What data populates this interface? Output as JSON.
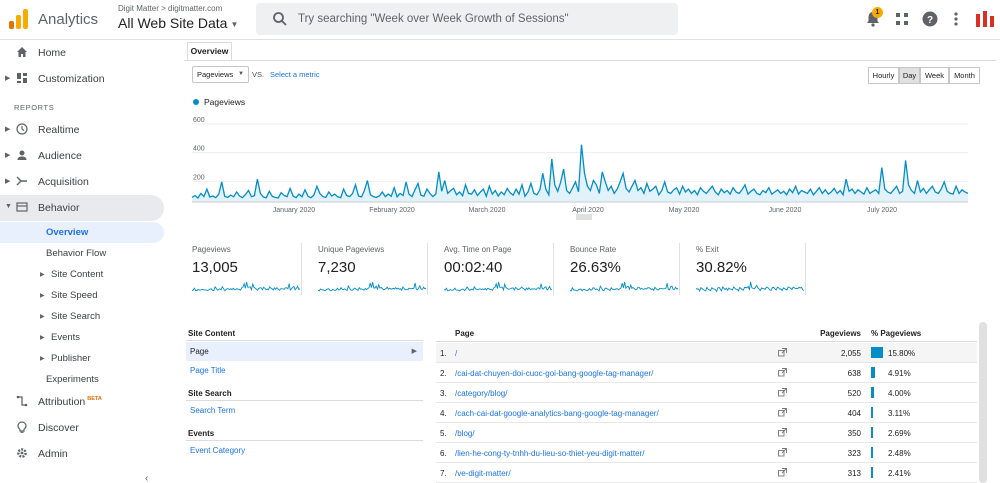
{
  "header": {
    "app_name": "Analytics",
    "breadcrumb": "Digit Matter > digitmatter.com",
    "property": "All Web Site Data",
    "search_placeholder": "Try searching \"Week over Week Growth of Sessions\"",
    "notification_count": "1"
  },
  "sidebar": {
    "home": "Home",
    "customization": "Customization",
    "reports_heading": "REPORTS",
    "realtime": "Realtime",
    "audience": "Audience",
    "acquisition": "Acquisition",
    "behavior": "Behavior",
    "overview": "Overview",
    "behavior_flow": "Behavior Flow",
    "site_content": "Site Content",
    "site_speed": "Site Speed",
    "site_search": "Site Search",
    "events": "Events",
    "publisher": "Publisher",
    "experiments": "Experiments",
    "attribution": "Attribution",
    "attribution_badge": "BETA",
    "discover": "Discover",
    "admin": "Admin"
  },
  "main": {
    "tab": "Overview",
    "metric_select": "Pageviews",
    "vs": "VS.",
    "select_metric": "Select a metric",
    "granularity": [
      "Hourly",
      "Day",
      "Week",
      "Month"
    ],
    "selected_granularity": "Day",
    "legend": "Pageviews"
  },
  "chart_data": {
    "type": "area",
    "series": [
      {
        "name": "Pageviews",
        "color": "#058dc7"
      }
    ],
    "y_ticks": [
      "600",
      "400",
      "200"
    ],
    "x_ticks": [
      "January 2020",
      "February 2020",
      "March 2020",
      "April 2020",
      "May 2020",
      "June 2020",
      "July 2020"
    ],
    "ylim": [
      0,
      600
    ],
    "values": [
      32,
      45,
      28,
      60,
      38,
      90,
      35,
      42,
      30,
      55,
      140,
      40,
      32,
      48,
      36,
      70,
      42,
      30,
      52,
      80,
      38,
      44,
      160,
      60,
      35,
      30,
      75,
      40,
      32,
      28,
      65,
      45,
      38,
      95,
      42,
      30,
      55,
      36,
      85,
      40,
      30,
      48,
      110,
      60,
      38,
      32,
      70,
      42,
      55,
      36,
      30,
      90,
      45,
      38,
      60,
      120,
      42,
      35,
      80,
      150,
      50,
      38,
      32,
      42,
      70,
      38,
      55,
      40,
      100,
      36,
      60,
      45,
      140,
      55,
      38,
      85,
      130,
      48,
      40,
      90,
      60,
      38,
      55,
      210,
      75,
      150,
      60,
      80,
      95,
      50,
      70,
      44,
      120,
      60,
      55,
      85,
      45,
      70,
      90,
      40,
      110,
      55,
      80,
      42,
      70,
      50,
      95,
      65,
      48,
      90,
      55,
      120,
      40,
      70,
      130,
      60,
      50,
      85,
      200,
      90,
      50,
      300,
      120,
      75,
      140,
      230,
      80,
      60,
      100,
      140,
      70,
      400,
      200,
      110,
      80,
      150,
      120,
      60,
      210,
      140,
      80,
      110,
      60,
      90,
      140,
      200,
      95,
      70,
      110,
      150,
      80,
      100,
      60,
      130,
      75,
      90,
      110,
      50,
      80,
      140,
      70,
      60,
      85,
      100,
      55,
      110,
      70,
      90,
      60,
      80,
      50,
      100,
      75,
      60,
      85,
      110,
      70,
      50,
      90,
      65,
      80,
      55,
      100,
      70,
      60,
      85,
      120,
      55,
      75,
      90,
      60,
      50,
      80,
      65,
      100,
      55,
      70,
      85,
      60,
      75,
      50,
      90,
      65,
      110,
      55,
      80,
      70,
      60,
      90,
      50,
      75,
      100,
      60,
      85,
      55,
      70,
      95,
      60,
      80,
      50,
      160,
      75,
      90,
      60,
      85,
      70,
      55,
      100,
      60,
      75,
      85,
      60,
      240,
      90,
      70,
      60,
      85,
      110,
      60,
      75,
      290,
      120,
      80,
      60,
      150,
      70,
      95,
      60,
      85,
      110,
      70,
      60,
      90,
      140,
      75,
      60,
      55,
      110,
      60,
      85,
      70,
      60
    ]
  },
  "cards": [
    {
      "title": "Pageviews",
      "value": "13,005"
    },
    {
      "title": "Unique Pageviews",
      "value": "7,230"
    },
    {
      "title": "Avg. Time on Page",
      "value": "00:02:40"
    },
    {
      "title": "Bounce Rate",
      "value": "26.63%"
    },
    {
      "title": "% Exit",
      "value": "30.82%"
    }
  ],
  "left_table": {
    "site_content": "Site Content",
    "page": "Page",
    "page_title": "Page Title",
    "site_search": "Site Search",
    "search_term": "Search Term",
    "events": "Events",
    "event_category": "Event Category"
  },
  "right_table": {
    "col_page": "Page",
    "col_pageviews": "Pageviews",
    "col_pct": "% Pageviews",
    "rows": [
      {
        "n": "1.",
        "page": "/",
        "pageviews": "2,055",
        "pct": "15.80%",
        "pct_value": 15.8
      },
      {
        "n": "2.",
        "page": "/cai-dat-chuyen-doi-cuoc-goi-bang-google-tag-manager/",
        "pageviews": "638",
        "pct": "4.91%",
        "pct_value": 4.91
      },
      {
        "n": "3.",
        "page": "/category/blog/",
        "pageviews": "520",
        "pct": "4.00%",
        "pct_value": 4.0
      },
      {
        "n": "4.",
        "page": "/cach-cai-dat-google-analytics-bang-google-tag-manager/",
        "pageviews": "404",
        "pct": "3.11%",
        "pct_value": 3.11
      },
      {
        "n": "5.",
        "page": "/blog/",
        "pageviews": "350",
        "pct": "2.69%",
        "pct_value": 2.69
      },
      {
        "n": "6.",
        "page": "/lien-he-cong-ty-tnhh-du-lieu-so-thiet-yeu-digit-matter/",
        "pageviews": "323",
        "pct": "2.48%",
        "pct_value": 2.48
      },
      {
        "n": "7.",
        "page": "/ve-digit-matter/",
        "pageviews": "313",
        "pct": "2.41%",
        "pct_value": 2.41
      }
    ]
  }
}
